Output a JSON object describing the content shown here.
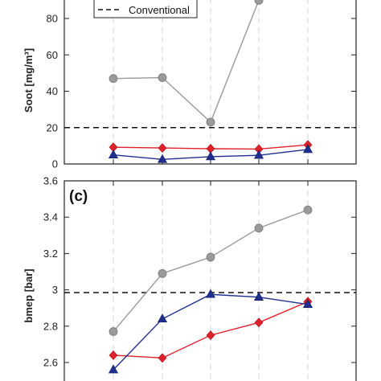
{
  "chart_data": [
    {
      "type": "line",
      "panel": "soot",
      "panel_tag": "",
      "ylabel": "Soot [mg/m³]",
      "ylim": [
        0,
        100
      ],
      "yticks": [
        0,
        20,
        40,
        60,
        80
      ],
      "x": [
        1,
        2,
        3,
        4,
        5
      ],
      "reference": {
        "name": "Conventional",
        "value": 20
      },
      "legend": {
        "position": "top-center",
        "entries": [
          "Conventional"
        ]
      },
      "series": [
        {
          "color": "#9a9a9a",
          "marker": "circle",
          "values": [
            47,
            47.5,
            23,
            90,
            null
          ]
        },
        {
          "color": "#e0202a",
          "marker": "diamond",
          "values": [
            9.2,
            8.8,
            8.4,
            8.2,
            10.5
          ]
        },
        {
          "color": "#1f2f8f",
          "marker": "triangle",
          "values": [
            5,
            2.5,
            4,
            4.8,
            8
          ]
        }
      ]
    },
    {
      "type": "line",
      "panel": "bmep",
      "panel_tag": "(c)",
      "ylabel": "bmep [bar]",
      "ylim": [
        2.55,
        3.6
      ],
      "yticks": [
        "2.6",
        "2.8",
        "3",
        "3.2",
        "3.4",
        "3.6"
      ],
      "x": [
        1,
        2,
        3,
        4,
        5
      ],
      "reference": {
        "name": "Conventional",
        "value": 2.985
      },
      "series": [
        {
          "color": "#9a9a9a",
          "marker": "circle",
          "values": [
            2.77,
            3.09,
            3.18,
            3.34,
            3.44
          ]
        },
        {
          "color": "#e0202a",
          "marker": "diamond",
          "values": [
            2.64,
            2.625,
            2.75,
            2.82,
            2.935
          ]
        },
        {
          "color": "#1f2f8f",
          "marker": "triangle",
          "values": [
            2.56,
            2.84,
            2.975,
            2.96,
            2.92
          ]
        }
      ]
    }
  ]
}
